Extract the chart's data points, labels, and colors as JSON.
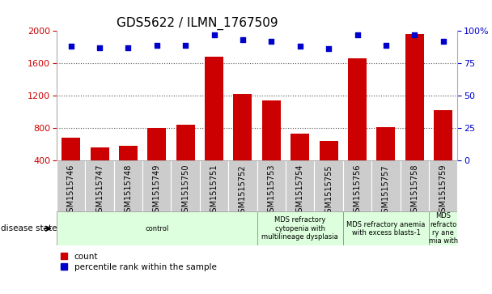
{
  "title": "GDS5622 / ILMN_1767509",
  "samples": [
    "GSM1515746",
    "GSM1515747",
    "GSM1515748",
    "GSM1515749",
    "GSM1515750",
    "GSM1515751",
    "GSM1515752",
    "GSM1515753",
    "GSM1515754",
    "GSM1515755",
    "GSM1515756",
    "GSM1515757",
    "GSM1515758",
    "GSM1515759"
  ],
  "counts": [
    680,
    560,
    575,
    800,
    840,
    1680,
    1220,
    1140,
    730,
    640,
    1660,
    810,
    1960,
    1020
  ],
  "percentile_ranks": [
    88,
    87,
    87,
    89,
    89,
    97,
    93,
    92,
    88,
    86,
    97,
    89,
    97,
    92
  ],
  "ylim_left": [
    400,
    2000
  ],
  "ylim_right": [
    0,
    100
  ],
  "yticks_left": [
    400,
    800,
    1200,
    1600,
    2000
  ],
  "yticks_right": [
    0,
    25,
    50,
    75,
    100
  ],
  "bar_color": "#cc0000",
  "dot_color": "#0000cc",
  "grid_color": "#555555",
  "disease_groups": [
    {
      "label": "control",
      "start": 0,
      "end": 7,
      "color": "#ddffdd"
    },
    {
      "label": "MDS refractory\ncytopenia with\nmultilineage dysplasia",
      "start": 7,
      "end": 10,
      "color": "#ddffdd"
    },
    {
      "label": "MDS refractory anemia\nwith excess blasts-1",
      "start": 10,
      "end": 13,
      "color": "#ddffdd"
    },
    {
      "label": "MDS\nrefracto\nry ane\nmia with",
      "start": 13,
      "end": 14,
      "color": "#ddffdd"
    }
  ],
  "xlabel_disease": "disease state",
  "legend_count": "count",
  "legend_pct": "percentile rank within the sample",
  "tick_label_color_left": "#cc0000",
  "tick_label_color_right": "#0000cc",
  "title_fontsize": 11,
  "tick_fontsize": 8,
  "label_fontsize": 8,
  "bar_bottom": 400
}
